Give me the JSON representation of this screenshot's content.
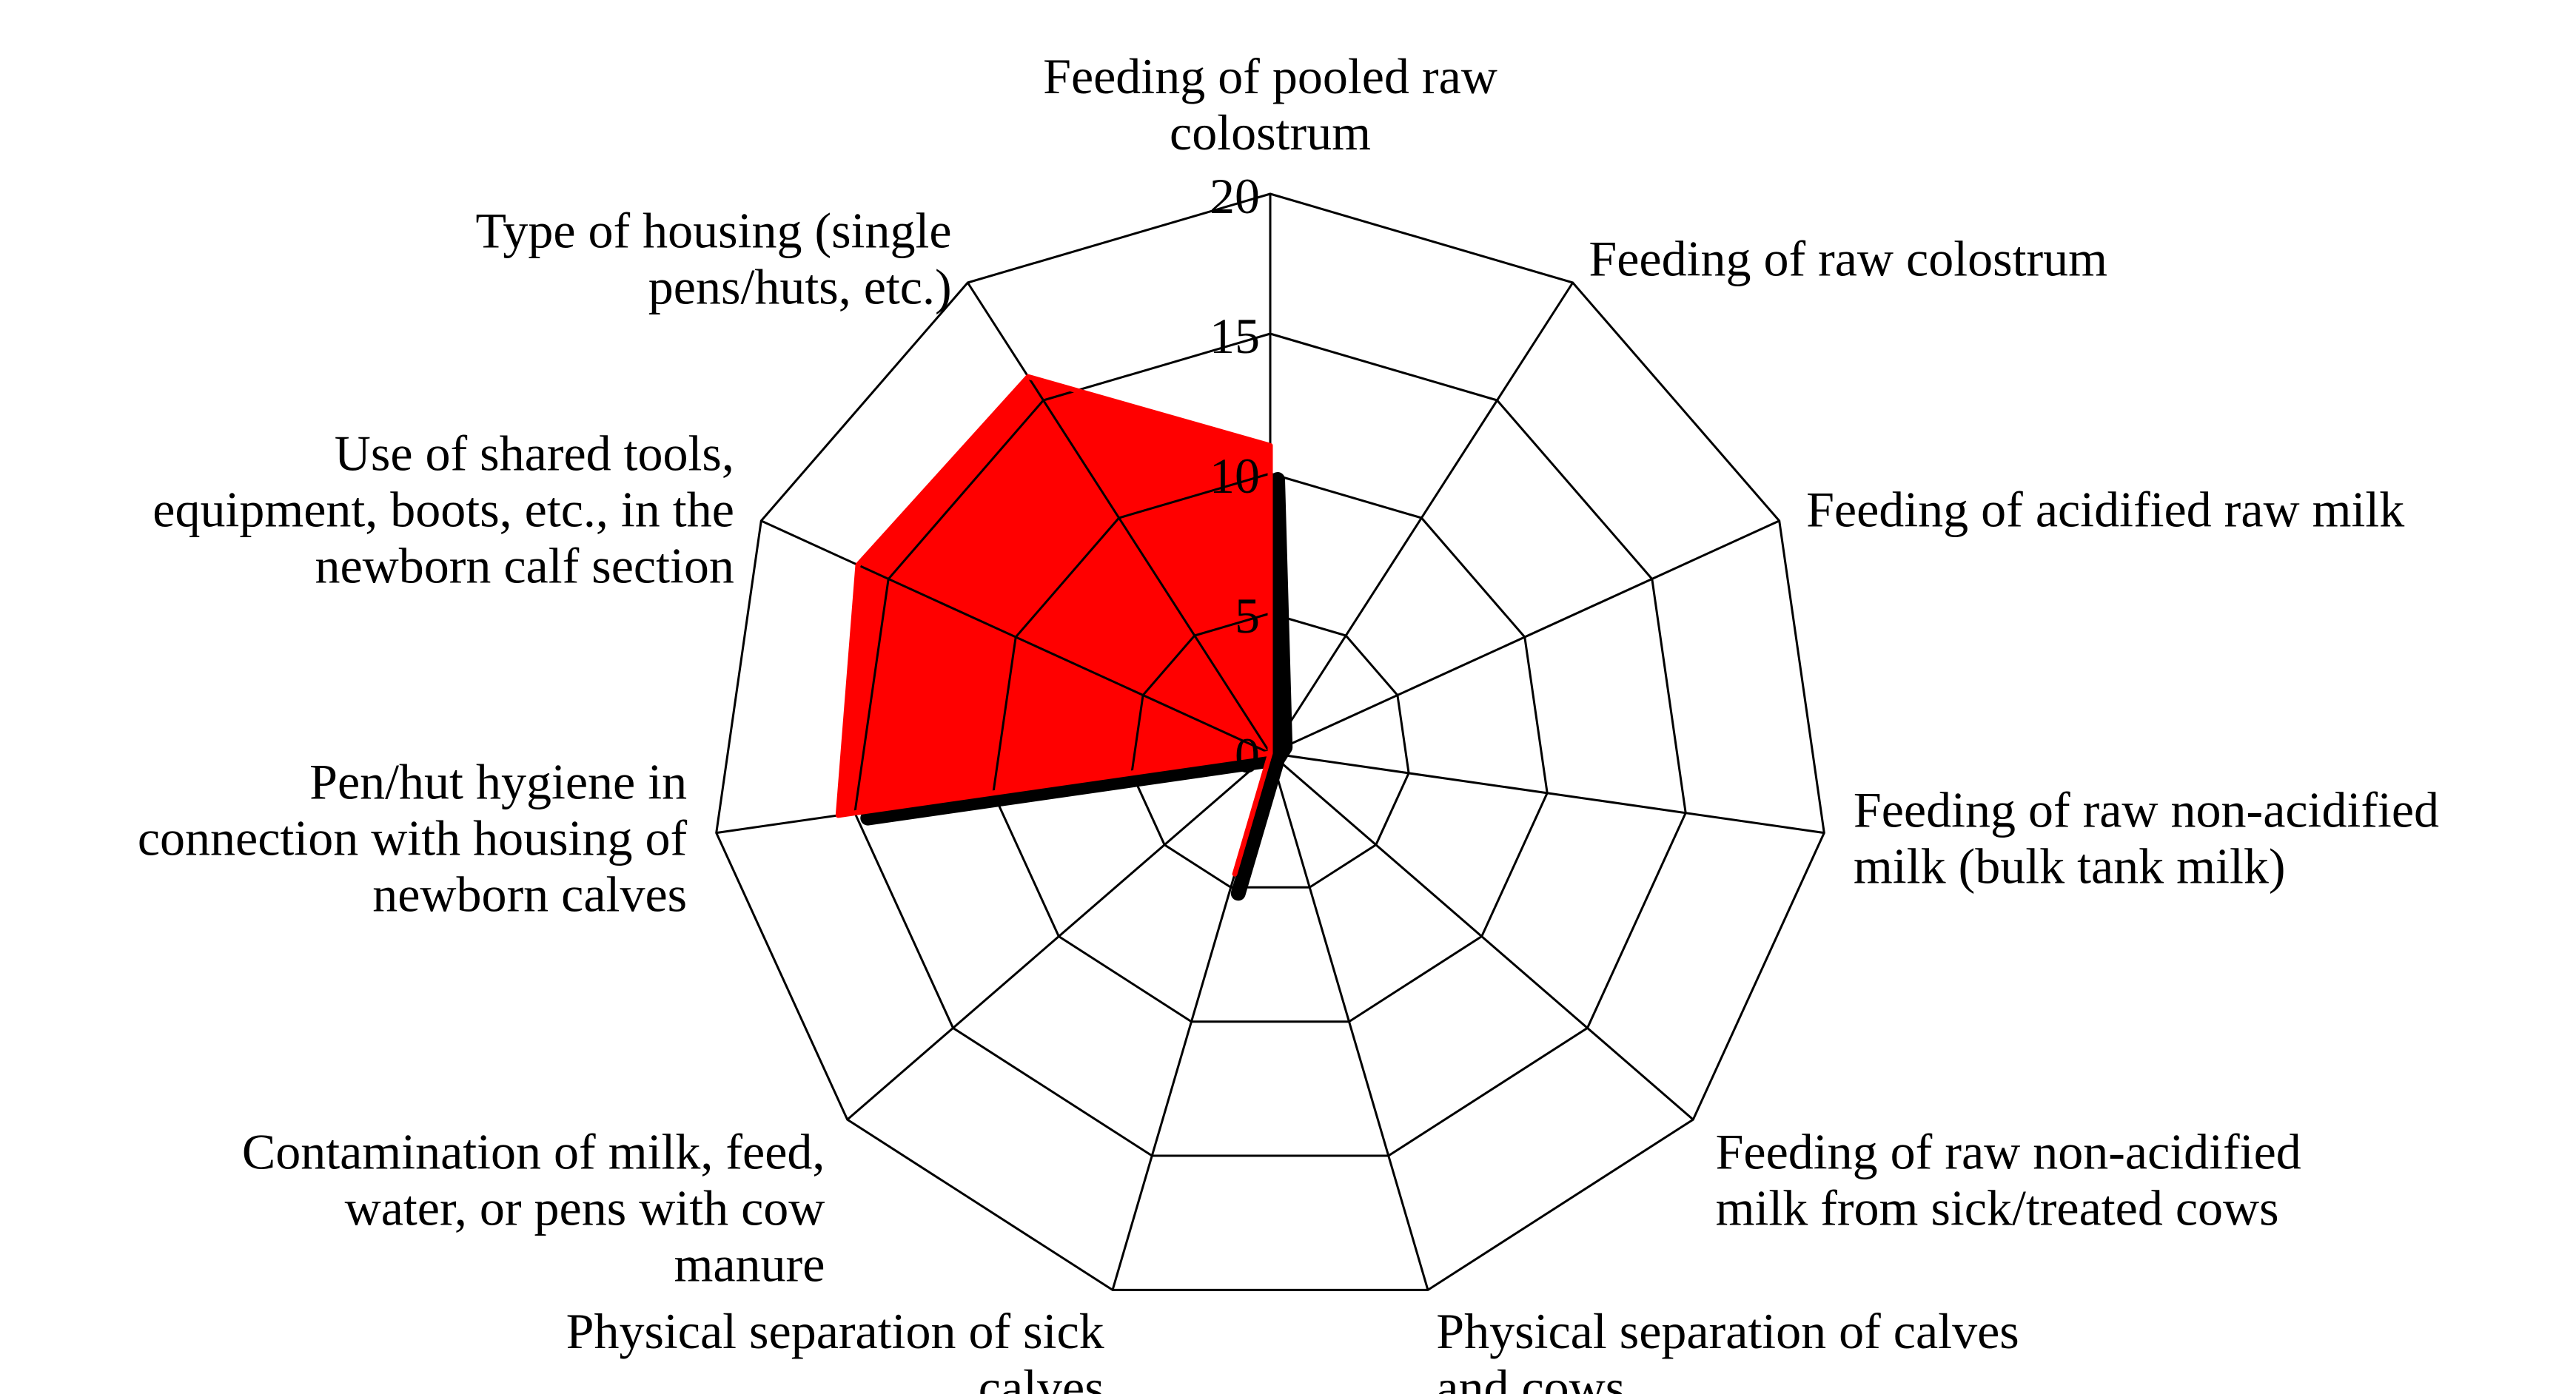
{
  "chart_data": {
    "type": "radar",
    "axes": [
      {
        "label_lines": [
          "Feeding of pooled raw",
          "colostrum"
        ]
      },
      {
        "label_lines": [
          "Feeding of raw colostrum"
        ]
      },
      {
        "label_lines": [
          "Feeding of acidified raw milk"
        ]
      },
      {
        "label_lines": [
          "Feeding of raw non-acidified",
          "milk  (bulk tank milk)"
        ]
      },
      {
        "label_lines": [
          "Feeding of raw non-acidified",
          "milk from sick/treated cows"
        ]
      },
      {
        "label_lines": [
          "Physical separation of calves",
          "and cows"
        ]
      },
      {
        "label_lines": [
          "Physical separation of sick",
          "calves"
        ]
      },
      {
        "label_lines": [
          "Contamination  of milk, feed,",
          "water, or pens with cow",
          "manure"
        ]
      },
      {
        "label_lines": [
          "Pen/hut hygiene in",
          "connection with housing of",
          "newborn calves"
        ]
      },
      {
        "label_lines": [
          "Use of shared tools,",
          "equipment, boots, etc., in the",
          "newborn calf section"
        ]
      },
      {
        "label_lines": [
          "Type of housing (single",
          "pens/huts, etc.)"
        ]
      }
    ],
    "rmin": 0,
    "rmax": 20,
    "ticks": [
      "0",
      "5",
      "10",
      "15",
      "20"
    ],
    "grid": true,
    "legend": "none",
    "series": [
      {
        "color": "#000000",
        "values": [
          10.0,
          0.5,
          0,
          0,
          0,
          0,
          5.0,
          0,
          14.8,
          0,
          0
        ]
      },
      {
        "color": "#ff0000",
        "values": [
          11.0,
          0,
          0,
          0,
          0,
          0,
          4.5,
          0,
          15.6,
          16.2,
          16.0
        ]
      }
    ]
  }
}
